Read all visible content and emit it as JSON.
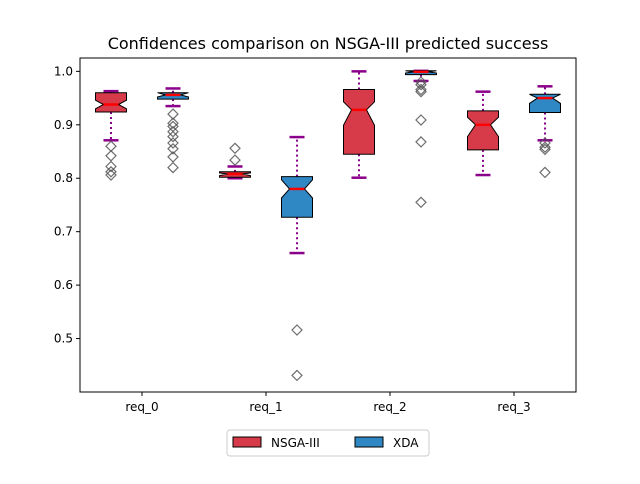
{
  "chart_data": {
    "type": "box",
    "title": "Confidences comparison on NSGA-III predicted success",
    "xlabel": "",
    "ylabel": "",
    "categories": [
      "req_0",
      "req_1",
      "req_2",
      "req_3"
    ],
    "ylim": [
      0.4,
      1.025
    ],
    "yticks": [
      0.5,
      0.6,
      0.7,
      0.8,
      0.9,
      1.0
    ],
    "ytick_labels": [
      "0.5",
      "0.6",
      "0.7",
      "0.8",
      "0.9",
      "1.0"
    ],
    "notched": true,
    "legend_position": "bottom-center",
    "colors": {
      "whisker": "#8b008b",
      "median": "#ff0000",
      "outlier": "#555555"
    },
    "series": [
      {
        "name": "NSGA-III",
        "color": "#d73a49",
        "boxes": [
          {
            "category": "req_0",
            "whislo": 0.871,
            "q1": 0.924,
            "med": 0.938,
            "q3": 0.96,
            "whishi": 0.963,
            "notch_lo": 0.93,
            "notch_hi": 0.946,
            "fliers": [
              0.86,
              0.842,
              0.822,
              0.812,
              0.806
            ]
          },
          {
            "category": "req_1",
            "whislo": 0.8,
            "q1": 0.802,
            "med": 0.808,
            "q3": 0.812,
            "whishi": 0.822,
            "notch_lo": 0.805,
            "notch_hi": 0.81,
            "fliers": [
              0.856,
              0.834
            ]
          },
          {
            "category": "req_2",
            "whislo": 0.801,
            "q1": 0.845,
            "med": 0.928,
            "q3": 0.966,
            "whishi": 1.0,
            "notch_lo": 0.899,
            "notch_hi": 0.943,
            "fliers": []
          },
          {
            "category": "req_3",
            "whislo": 0.806,
            "q1": 0.853,
            "med": 0.9,
            "q3": 0.926,
            "whishi": 0.962,
            "notch_lo": 0.878,
            "notch_hi": 0.914,
            "fliers": []
          }
        ]
      },
      {
        "name": "XDA",
        "color": "#2f87c4",
        "boxes": [
          {
            "category": "req_0",
            "whislo": 0.935,
            "q1": 0.948,
            "med": 0.956,
            "q3": 0.96,
            "whishi": 0.968,
            "notch_lo": 0.952,
            "notch_hi": 0.96,
            "fliers": [
              0.92,
              0.903,
              0.897,
              0.887,
              0.878,
              0.866,
              0.855,
              0.84,
              0.82
            ]
          },
          {
            "category": "req_1",
            "whislo": 0.66,
            "q1": 0.727,
            "med": 0.78,
            "q3": 0.803,
            "whishi": 0.877,
            "notch_lo": 0.763,
            "notch_hi": 0.797,
            "fliers": [
              0.516,
              0.431
            ]
          },
          {
            "category": "req_2",
            "whislo": 0.982,
            "q1": 0.994,
            "med": 0.999,
            "q3": 1.001,
            "whishi": 1.001,
            "notch_lo": 0.997,
            "notch_hi": 1.001,
            "fliers": [
              0.98,
              0.975,
              0.966,
              0.962,
              0.909,
              0.868,
              0.755
            ]
          },
          {
            "category": "req_3",
            "whislo": 0.871,
            "q1": 0.923,
            "med": 0.95,
            "q3": 0.957,
            "whishi": 0.972,
            "notch_lo": 0.94,
            "notch_hi": 0.957,
            "fliers": [
              0.866,
              0.858,
              0.854,
              0.811
            ]
          }
        ]
      }
    ]
  }
}
